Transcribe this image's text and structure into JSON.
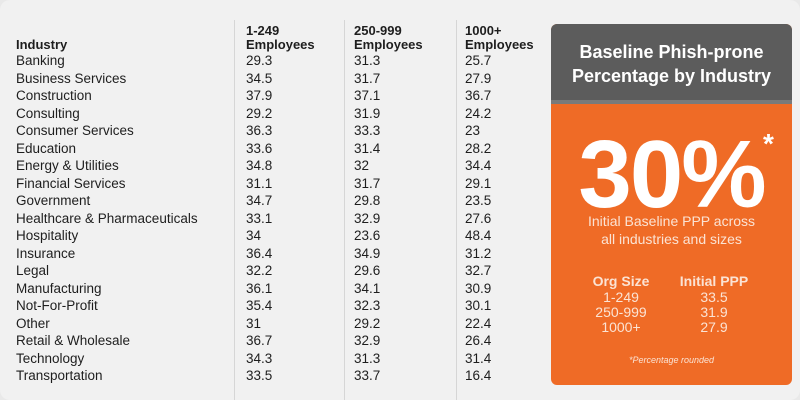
{
  "chart_data": {
    "type": "table",
    "columns": [
      "Industry",
      "1-249 Employees",
      "250-999 Employees",
      "1000+ Employees"
    ],
    "rows": [
      [
        "Banking",
        "29.3",
        "31.3",
        "25.7"
      ],
      [
        "Business Services",
        "34.5",
        "31.7",
        "27.9"
      ],
      [
        "Construction",
        "37.9",
        "37.1",
        "36.7"
      ],
      [
        "Consulting",
        "29.2",
        "31.9",
        "24.2"
      ],
      [
        "Consumer Services",
        "36.3",
        "33.3",
        "23"
      ],
      [
        "Education",
        "33.6",
        "31.4",
        "28.2"
      ],
      [
        "Energy & Utilities",
        "34.8",
        "32",
        "34.4"
      ],
      [
        "Financial Services",
        "31.1",
        "31.7",
        "29.1"
      ],
      [
        "Government",
        "34.7",
        "29.8",
        "23.5"
      ],
      [
        "Healthcare & Pharmaceuticals",
        "33.1",
        "32.9",
        "27.6"
      ],
      [
        "Hospitality",
        "34",
        "23.6",
        "48.4"
      ],
      [
        "Insurance",
        "36.4",
        "34.9",
        "31.2"
      ],
      [
        "Legal",
        "32.2",
        "29.6",
        "32.7"
      ],
      [
        "Manufacturing",
        "36.1",
        "34.1",
        "30.9"
      ],
      [
        "Not-For-Profit",
        "35.4",
        "32.3",
        "30.1"
      ],
      [
        "Other",
        "31",
        "29.2",
        "22.4"
      ],
      [
        "Retail & Wholesale",
        "36.7",
        "32.9",
        "26.4"
      ],
      [
        "Technology",
        "34.3",
        "31.3",
        "31.4"
      ],
      [
        "Transportation",
        "33.5",
        "33.7",
        "16.4"
      ]
    ]
  },
  "header": {
    "industry": "Industry",
    "col1_line1": "1-249",
    "col1_line2": "Employees",
    "col2_line1": "250-999",
    "col2_line2": "Employees",
    "col3_line1": "1000+",
    "col3_line2": "Employees"
  },
  "panel": {
    "title_line1": "Baseline Phish-prone",
    "title_line2": "Percentage by Industry",
    "big_value": "30%",
    "asterisk": "*",
    "sub_line1": "Initial Baseline PPP across",
    "sub_line2": "all industries and sizes",
    "org_size_header": "Org Size",
    "initial_ppp_header": "Initial PPP",
    "org_sizes": [
      "1-249",
      "250-999",
      "1000+"
    ],
    "ppp_values": [
      "33.5",
      "31.9",
      "27.9"
    ],
    "footnote": "*Percentage rounded"
  },
  "colors": {
    "panel_orange": "#ef6b26",
    "panel_header_gray": "#5c5c5c",
    "background": "#f1f1f1"
  }
}
